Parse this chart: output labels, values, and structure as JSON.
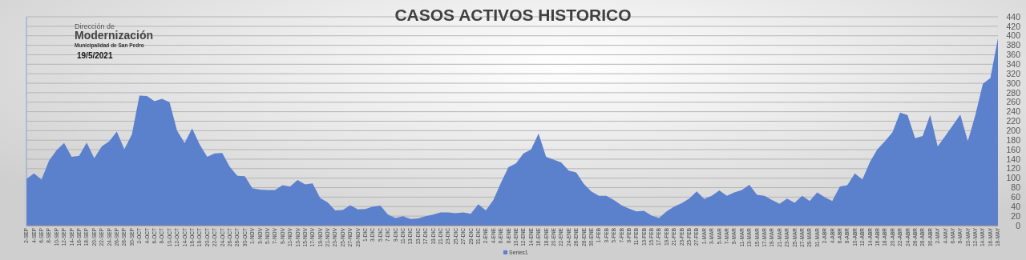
{
  "chart_data": {
    "type": "area",
    "title": "CASOS ACTIVOS HISTORICO",
    "annotations": [
      "Dirección de",
      "Modernización",
      "Municipalidad de San Pedro",
      "19/5/2021"
    ],
    "categories": [
      "2-SEP",
      "4-SEP",
      "6-SEP",
      "8-SEP",
      "10-SEP",
      "12-SEP",
      "14-SEP",
      "16-SEP",
      "18-SEP",
      "20-SEP",
      "22-SEP",
      "24-SEP",
      "26-SEP",
      "28-SEP",
      "30-SEP",
      "2-OCT",
      "4-OCT",
      "6-OCT",
      "8-OCT",
      "10-OCT",
      "12-OCT",
      "14-OCT",
      "16-OCT",
      "18-OCT",
      "20-OCT",
      "22-OCT",
      "24-OCT",
      "26-OCT",
      "28-OCT",
      "30-OCT",
      "1-NOV",
      "3-NOV",
      "5-NOV",
      "7-NOV",
      "9-NOV",
      "11-NOV",
      "13-NOV",
      "15-NOV",
      "17-NOV",
      "19-NOV",
      "21-NOV",
      "23-NOV",
      "25-NOV",
      "27-NOV",
      "29-NOV",
      "1-DIC",
      "3-DIC",
      "5-DIC",
      "7-DIC",
      "9-DIC",
      "11-DIC",
      "13-DIC",
      "15-DIC",
      "17-DIC",
      "19-DIC",
      "21-DIC",
      "23-DIC",
      "25-DIC",
      "27-DIC",
      "29-DIC",
      "31-DIC",
      "2-ENE",
      "4-ENE",
      "6-ENE",
      "8-ENE",
      "10-ENE",
      "12-ENE",
      "14-ENE",
      "16-ENE",
      "18-ENE",
      "20-ENE",
      "22-ENE",
      "24-ENE",
      "26-ENE",
      "28-ENE",
      "30-ENE",
      "1-FEB",
      "3-FEB",
      "5-FEB",
      "7-FEB",
      "9-FEB",
      "11-FEB",
      "13-FEB",
      "15-FEB",
      "17-FEB",
      "19-FEB",
      "21-FEB",
      "23-FEB",
      "25-FEB",
      "27-FEB",
      "1-MAR",
      "3-MAR",
      "5-MAR",
      "7-MAR",
      "9-MAR",
      "11-MAR",
      "13-MAR",
      "15-MAR",
      "17-MAR",
      "19-MAR",
      "21-MAR",
      "23-MAR",
      "25-MAR",
      "27-MAR",
      "29-MAR",
      "31-MAR",
      "2-ABR",
      "4-ABR",
      "6-ABR",
      "8-ABR",
      "10-ABR",
      "12-ABR",
      "14-ABR",
      "16-ABR",
      "18-ABR",
      "20-ABR",
      "22-ABR",
      "24-ABR",
      "26-ABR",
      "28-ABR",
      "30-ABR",
      "2-MAY",
      "4-MAY",
      "6-MAY",
      "8-MAY",
      "10-MAY",
      "12-MAY",
      "14-MAY",
      "16-MAY",
      "18-MAY"
    ],
    "series": [
      {
        "name": "Series1",
        "color": "#5b80cc",
        "values": [
          98,
          110,
          97,
          137,
          159,
          174,
          145,
          147,
          175,
          142,
          167,
          178,
          198,
          161,
          192,
          274,
          273,
          262,
          267,
          260,
          200,
          174,
          205,
          171,
          145,
          152,
          153,
          124,
          105,
          104,
          79,
          76,
          75,
          75,
          85,
          82,
          96,
          87,
          89,
          58,
          49,
          32,
          33,
          43,
          34,
          35,
          40,
          42,
          23,
          16,
          20,
          14,
          15,
          20,
          23,
          28,
          28,
          26,
          28,
          25,
          45,
          32,
          54,
          90,
          123,
          131,
          152,
          160,
          194,
          145,
          139,
          133,
          116,
          112,
          88,
          72,
          63,
          63,
          54,
          43,
          36,
          30,
          31,
          21,
          16,
          30,
          40,
          47,
          57,
          72,
          56,
          63,
          74,
          63,
          70,
          75,
          86,
          65,
          63,
          54,
          46,
          57,
          48,
          63,
          52,
          70,
          60,
          52,
          82,
          85,
          110,
          97,
          134,
          161,
          178,
          197,
          238,
          233,
          184,
          189,
          233,
          167,
          189,
          211,
          234,
          178,
          233,
          299,
          311,
          395
        ]
      }
    ],
    "ylim": [
      0,
      440
    ],
    "yticks": [
      0,
      20,
      40,
      60,
      80,
      100,
      120,
      140,
      160,
      180,
      200,
      220,
      240,
      260,
      280,
      300,
      320,
      340,
      360,
      380,
      400,
      420,
      440
    ],
    "grid": "y",
    "legend": "bottom"
  }
}
